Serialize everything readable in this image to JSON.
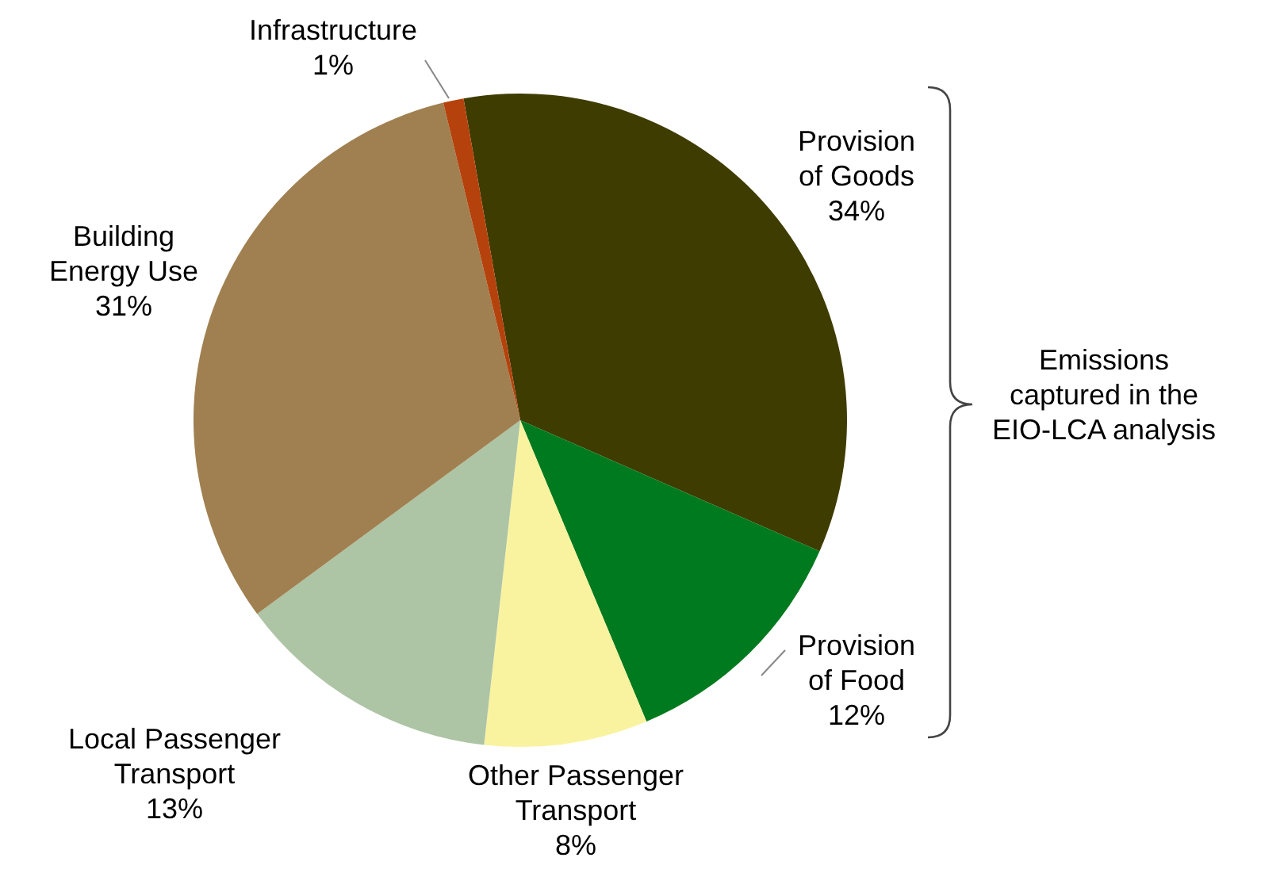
{
  "chart_data": {
    "type": "pie",
    "categories": [
      "Provision\nof Goods",
      "Provision\nof Food",
      "Other Passenger\nTransport",
      "Local Passenger\nTransport",
      "Building\nEnergy Use",
      "Infrastructure"
    ],
    "values": [
      34,
      12,
      8,
      13,
      31,
      1
    ],
    "value_labels": [
      "34%",
      "12%",
      "8%",
      "13%",
      "31%",
      "1%"
    ],
    "colors": [
      "#3f3c00",
      "#007a1e",
      "#f9f3a0",
      "#adc4a5",
      "#a08050",
      "#b5420c"
    ],
    "annotations": [
      "Emissions\ncaptured in the\nEIO-LCA analysis"
    ]
  }
}
